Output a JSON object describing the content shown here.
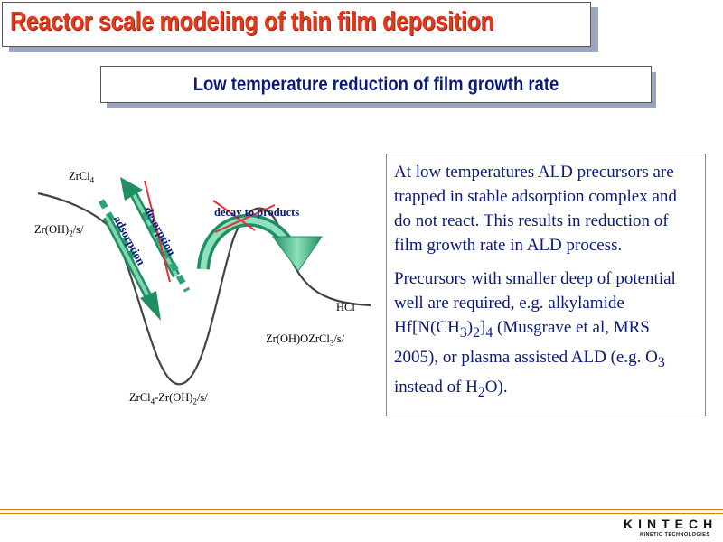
{
  "title": "Reactor scale modeling of thin film deposition",
  "subtitle": "Low temperature reduction of film growth rate",
  "diagram": {
    "labels": {
      "zrcl4": {
        "base": "ZrCl",
        "sub": "4"
      },
      "zroh2": {
        "base": "Zr(OH)",
        "sub": "2",
        "tail": "/s/"
      },
      "complex": {
        "p1": "ZrCl",
        "s1": "4",
        "p2": "-Zr(OH)",
        "s2": "2",
        "p3": "/s/"
      },
      "product": {
        "base": "Zr(OH)OZrCl",
        "sub": "3",
        "tail": "/s/"
      },
      "hcl": "HCl",
      "adsorption": "adsorption",
      "desorption": "desorption",
      "decay": "decay to products"
    },
    "colors": {
      "arrow_fill": "#2ea37a",
      "arrow_light": "#7fd6b0",
      "cross": "#e0303a",
      "curve": "#444444"
    }
  },
  "info": {
    "para1": "At low temperatures ALD precursors are trapped in stable adsorption complex and do not react. This results in reduction of film growth rate in  ALD process.",
    "para2": {
      "t1": "Precursors with smaller deep of potential well are required, e.g. alkylamide Hf[N(CH",
      "s1": "3",
      "t2": ")",
      "s2": "2",
      "t3": "]",
      "s3": "4",
      "t4": " (Musgrave et al, MRS 2005), or plasma assisted ALD (e.g. O",
      "s4": "3",
      "t5": " instead of H",
      "s5": "2",
      "t6": "O)."
    }
  },
  "logo": {
    "name": "KINTECH",
    "tagline": "KINETIC TECHNOLOGIES"
  }
}
